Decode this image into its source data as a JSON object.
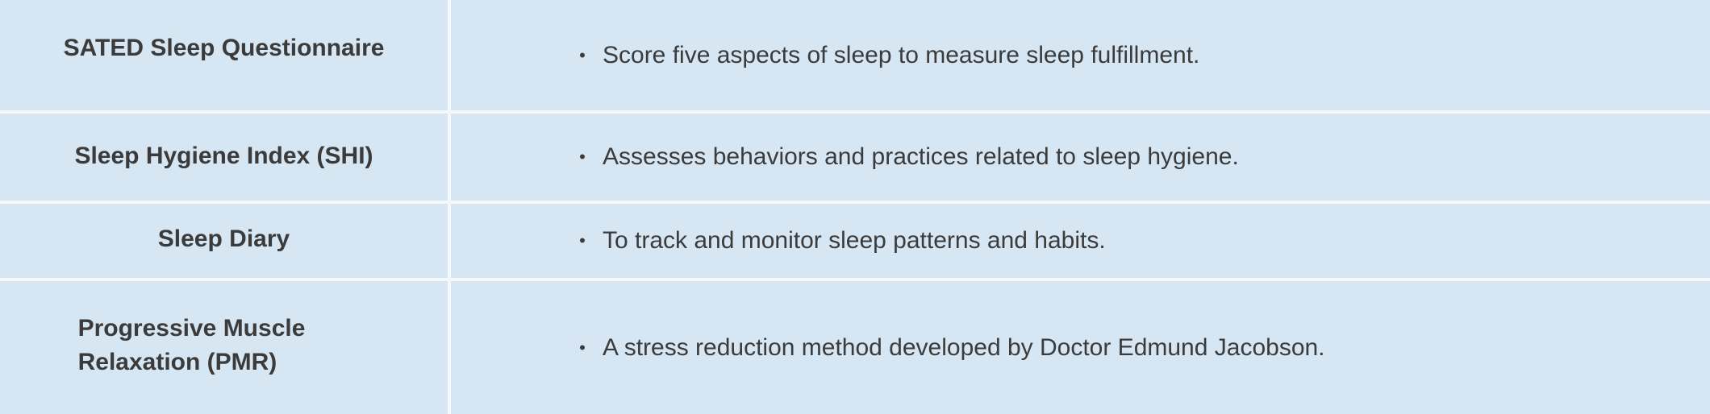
{
  "table": {
    "rows": [
      {
        "name": "SATED Sleep Questionnaire",
        "description": "Score five aspects of sleep to measure sleep fulfillment."
      },
      {
        "name": "Sleep Hygiene Index (SHI)",
        "description": "Assesses behaviors and practices related to sleep hygiene."
      },
      {
        "name": "Sleep Diary",
        "description": "To track and monitor sleep patterns and habits."
      },
      {
        "name_lines": [
          "Progressive Muscle",
          "Relaxation (PMR)"
        ],
        "description": "A stress reduction method developed by Doctor Edmund Jacobson."
      }
    ],
    "bullet_symbol": "•"
  },
  "colors": {
    "cell_background": "#d6e6f3",
    "divider": "#f4f8fb",
    "text": "#3b3b3b"
  }
}
